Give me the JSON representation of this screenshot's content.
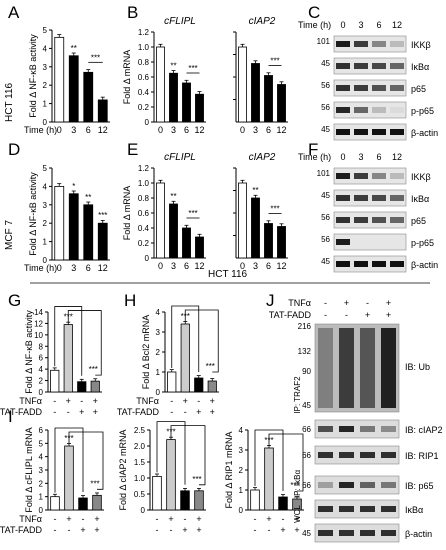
{
  "panel_letters": [
    "A",
    "B",
    "C",
    "D",
    "E",
    "F",
    "G",
    "H",
    "I",
    "J"
  ],
  "row_labels": {
    "top": "HCT 116",
    "middle": "MCF 7",
    "section": "HCT 116"
  },
  "time_axis_label": "Time (h)",
  "time_points": [
    "0",
    "3",
    "6",
    "12"
  ],
  "treatment_labels": {
    "tnf": "TNFα",
    "tat": "TAT-FADD"
  },
  "signs": {
    "G": [
      [
        "-",
        "+",
        "-",
        "+"
      ],
      [
        "-",
        "-",
        "+",
        "+"
      ]
    ],
    "J": [
      [
        "-",
        "+",
        "-",
        "+"
      ],
      [
        "-",
        "-",
        "+",
        "+"
      ]
    ]
  },
  "blot_mw": {
    "C": [
      "101",
      "45",
      "56",
      "56",
      "45"
    ],
    "F": [
      "101",
      "45",
      "56",
      "56",
      "45"
    ],
    "J": [
      "216",
      "132",
      "90",
      "45",
      "66",
      "66",
      "66",
      "45"
    ]
  },
  "blot_labels": {
    "C": [
      "IKKβ",
      "IκBα",
      "p65",
      "p-p65",
      "β-actin"
    ],
    "F": [
      "IKKβ",
      "IκBα",
      "p65",
      "p-p65",
      "β-actin"
    ],
    "J": [
      "IB: Ub",
      "IB: cIAP2",
      "IB: RIP1",
      "IB: p65",
      "IκBα",
      "β-actin"
    ]
  },
  "j_side_labels": [
    "IP: TRAF2",
    "IP: IκBα",
    "WCL"
  ],
  "chart_data": [
    {
      "panel": "A",
      "type": "bar",
      "ylabel": "Fold Δ NF-κB activity",
      "categories": [
        "0",
        "3",
        "6",
        "12"
      ],
      "values": [
        4.6,
        3.6,
        2.7,
        1.2
      ],
      "ylim": [
        0,
        5
      ],
      "yticks": [
        "0",
        "1",
        "2",
        "3",
        "4",
        "5"
      ],
      "sig": [
        "",
        "**",
        "",
        ""
      ],
      "bracket": "***"
    },
    {
      "panel": "B1",
      "type": "bar",
      "title": "cFLIPL",
      "ylabel": "Fold Δ mRNA",
      "categories": [
        "0",
        "3",
        "6",
        "12"
      ],
      "values": [
        1.0,
        0.65,
        0.52,
        0.37
      ],
      "ylim": [
        0,
        1.2
      ],
      "yticks": [
        "0",
        "0.2",
        "0.4",
        "0.6",
        "0.8",
        "1.0",
        "1.2"
      ],
      "sig": [
        "",
        "**",
        "",
        ""
      ],
      "bracket": "***"
    },
    {
      "panel": "B2",
      "type": "bar",
      "title": "cIAP2",
      "categories": [
        "0",
        "3",
        "6",
        "12"
      ],
      "values": [
        1.0,
        0.78,
        0.62,
        0.5
      ],
      "ylim": [
        0,
        1.2
      ],
      "sig": [
        "",
        "",
        "",
        ""
      ],
      "bracket": "***"
    },
    {
      "panel": "D",
      "type": "bar",
      "ylabel": "Fold Δ NF-κB activity",
      "categories": [
        "0",
        "3",
        "6",
        "12"
      ],
      "values": [
        4.0,
        3.6,
        3.0,
        2.0
      ],
      "ylim": [
        0,
        5
      ],
      "yticks": [
        "0",
        "1",
        "2",
        "3",
        "4",
        "5"
      ],
      "sig": [
        "",
        "*",
        "**",
        "***"
      ],
      "bracket": ""
    },
    {
      "panel": "E1",
      "type": "bar",
      "title": "cFLIPL",
      "ylabel": "Fold Δ mRNA",
      "categories": [
        "0",
        "3",
        "6",
        "12"
      ],
      "values": [
        1.0,
        0.72,
        0.4,
        0.28
      ],
      "ylim": [
        0,
        1.2
      ],
      "yticks": [
        "0",
        "0.2",
        "0.4",
        "0.6",
        "0.8",
        "1.0",
        "1.2"
      ],
      "sig": [
        "",
        "**",
        "",
        ""
      ],
      "bracket": "***"
    },
    {
      "panel": "E2",
      "type": "bar",
      "title": "cIAP2",
      "categories": [
        "0",
        "3",
        "6",
        "12"
      ],
      "values": [
        1.0,
        0.8,
        0.46,
        0.42
      ],
      "ylim": [
        0,
        1.2
      ],
      "sig": [
        "",
        "**",
        "",
        ""
      ],
      "bracket": "***"
    },
    {
      "panel": "G",
      "type": "bar",
      "ylabel": "Fold Δ NF-κB activity",
      "categories": [
        "1",
        "2",
        "3",
        "4"
      ],
      "values": [
        3.8,
        11.8,
        1.8,
        1.9
      ],
      "ylim": [
        0,
        14
      ],
      "yticks": [
        "0",
        "2",
        "4",
        "6",
        "8",
        "10",
        "12",
        "14"
      ],
      "sig": [
        "",
        "***",
        "",
        ""
      ],
      "bracket": "***"
    },
    {
      "panel": "H",
      "type": "bar",
      "ylabel": "Fold Δ Bcl2 mRNA",
      "categories": [
        "1",
        "2",
        "3",
        "4"
      ],
      "values": [
        1.0,
        3.4,
        0.7,
        0.55
      ],
      "ylim": [
        0,
        4
      ],
      "yticks": [
        "0",
        "1",
        "2",
        "3",
        "4"
      ],
      "sig": [
        "",
        "***",
        "",
        ""
      ],
      "bracket": "***"
    },
    {
      "panel": "I1",
      "type": "bar",
      "ylabel": "Fold Δ cFLIPL mRNA",
      "categories": [
        "1",
        "2",
        "3",
        "4"
      ],
      "values": [
        1.0,
        4.8,
        0.9,
        1.1
      ],
      "ylim": [
        0,
        6
      ],
      "yticks": [
        "0",
        "1",
        "2",
        "3",
        "4",
        "5",
        "6"
      ],
      "sig": [
        "",
        "***",
        "",
        ""
      ],
      "bracket": "***"
    },
    {
      "panel": "I2",
      "type": "bar",
      "ylabel": "Fold Δ cIAP2 mRNA",
      "categories": [
        "1",
        "2",
        "3",
        "4"
      ],
      "values": [
        1.05,
        2.2,
        0.6,
        0.6
      ],
      "ylim": [
        0,
        2.5
      ],
      "yticks": [
        "0",
        "0.5",
        "1.0",
        "1.5",
        "2.0",
        "2.5"
      ],
      "sig": [
        "",
        "***",
        "",
        ""
      ],
      "bracket": "***"
    },
    {
      "panel": "I3",
      "type": "bar",
      "ylabel": "Fold Δ RIP1 mRNA",
      "categories": [
        "1",
        "2",
        "3",
        "4"
      ],
      "values": [
        1.0,
        3.1,
        0.65,
        0.55
      ],
      "ylim": [
        0,
        4
      ],
      "yticks": [
        "0",
        "1",
        "2",
        "3",
        "4"
      ],
      "sig": [
        "",
        "***",
        "",
        ""
      ],
      "bracket": "***"
    }
  ]
}
